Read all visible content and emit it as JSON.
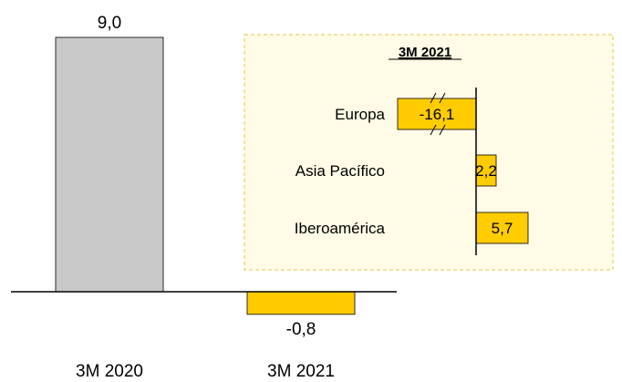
{
  "chart_data": [
    {
      "type": "bar",
      "categories": [
        "3M 2020",
        "3M 2021"
      ],
      "values": [
        9.0,
        -0.8
      ],
      "value_labels": [
        "9,0",
        "-0,8"
      ],
      "colors": [
        "#c8c8c8",
        "#ffcc00"
      ],
      "ylim": [
        -1.2,
        10.2
      ],
      "grid": false,
      "legend": "none"
    },
    {
      "type": "bar",
      "orientation": "horizontal",
      "title": "3M 2021",
      "categories": [
        "Europa",
        "Asia Pacífico",
        "Iberoamérica"
      ],
      "values": [
        -16.1,
        2.2,
        5.7
      ],
      "value_labels": [
        "-16,1",
        "2,2",
        "5,7"
      ],
      "axis_break_on": [
        "Europa"
      ],
      "color": "#ffcc00",
      "panel_background": "#fffbe6",
      "panel_border_color": "#e6c84a",
      "grid": false,
      "legend": "none"
    }
  ]
}
